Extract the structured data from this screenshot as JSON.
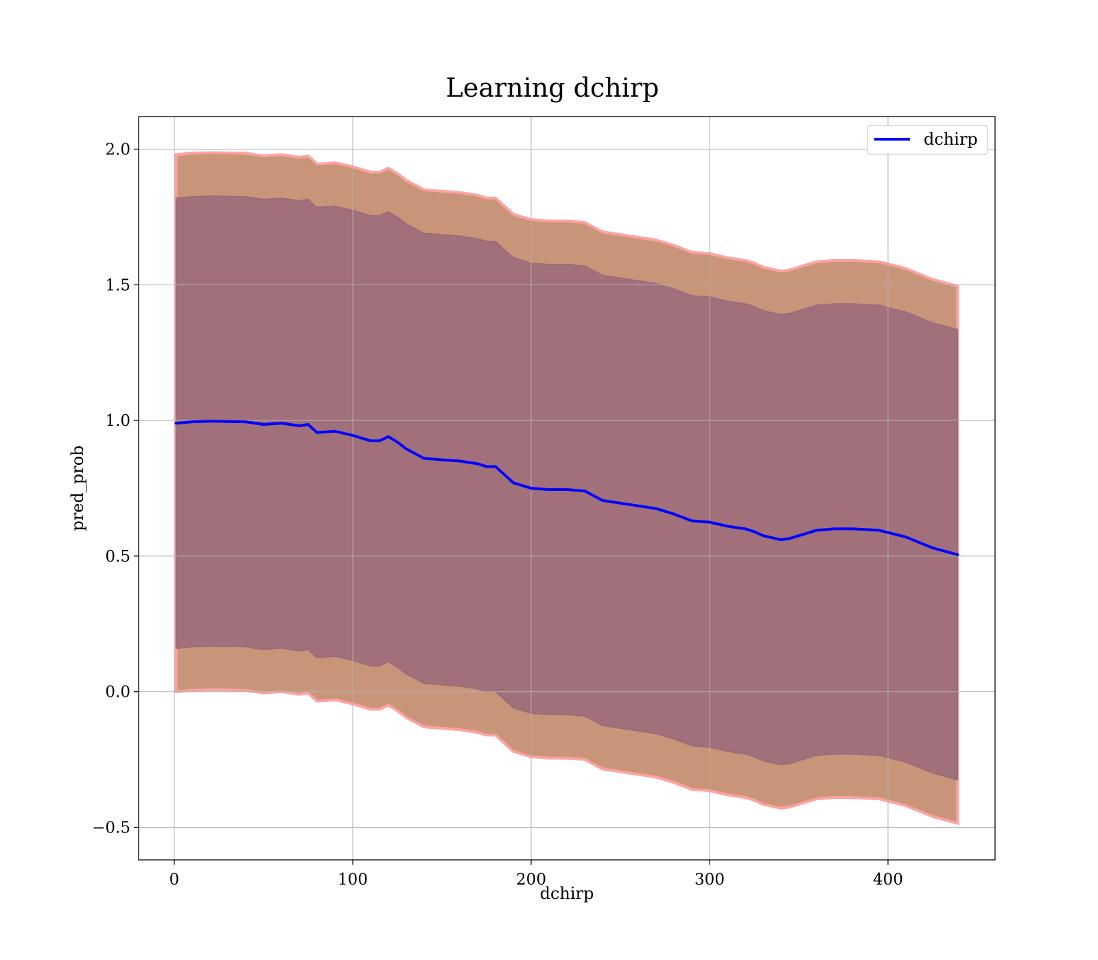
{
  "chart_data": {
    "type": "area",
    "title": "Learning dchirp",
    "xlabel": "dchirp",
    "ylabel": "pred_prob",
    "xlim": [
      -20,
      460
    ],
    "ylim": [
      -0.62,
      2.12
    ],
    "xticks": [
      0,
      100,
      200,
      300,
      400
    ],
    "yticks": [
      -0.5,
      0.0,
      0.5,
      1.0,
      1.5,
      2.0
    ],
    "xtick_labels": [
      "0",
      "100",
      "200",
      "300",
      "400"
    ],
    "ytick_labels": [
      "−0.5",
      "0.0",
      "0.5",
      "1.0",
      "1.5",
      "2.0"
    ],
    "grid": true,
    "legend_position": "top-right",
    "x": [
      1,
      10,
      20,
      30,
      40,
      50,
      60,
      70,
      75,
      80,
      90,
      100,
      110,
      115,
      120,
      125,
      130,
      140,
      150,
      160,
      170,
      175,
      180,
      185,
      190,
      200,
      210,
      220,
      230,
      240,
      250,
      260,
      270,
      280,
      290,
      300,
      310,
      320,
      325,
      330,
      340,
      345,
      360,
      370,
      380,
      395,
      410,
      425,
      439
    ],
    "series": [
      {
        "name": "dchirp",
        "color": "#0000ff",
        "values": [
          0.99,
          0.995,
          0.997,
          0.996,
          0.995,
          0.985,
          0.99,
          0.98,
          0.985,
          0.955,
          0.96,
          0.945,
          0.925,
          0.925,
          0.94,
          0.92,
          0.895,
          0.86,
          0.855,
          0.85,
          0.84,
          0.83,
          0.83,
          0.8,
          0.77,
          0.75,
          0.745,
          0.745,
          0.74,
          0.705,
          0.695,
          0.685,
          0.675,
          0.655,
          0.63,
          0.625,
          0.61,
          0.6,
          0.59,
          0.575,
          0.56,
          0.565,
          0.595,
          0.6,
          0.6,
          0.595,
          0.57,
          0.53,
          0.505
        ]
      }
    ],
    "bands": [
      {
        "role": "outer",
        "fill": "#c99579",
        "edge": "#ffa2a2",
        "lower_offset": -0.99,
        "upper_offset": 0.99
      },
      {
        "role": "inner",
        "fill": "#a1707a",
        "edge": "#9b6a7a",
        "lower_offset": -0.83,
        "upper_offset": 0.83
      }
    ]
  }
}
